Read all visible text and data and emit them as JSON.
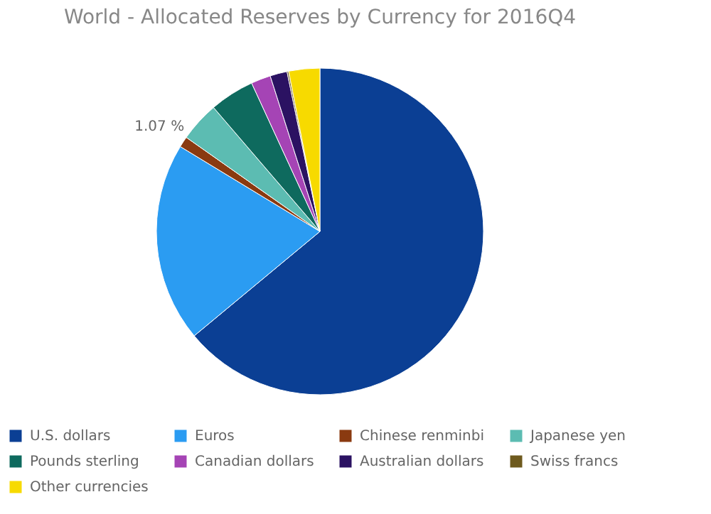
{
  "chart_data": {
    "type": "pie",
    "title": "World - Allocated Reserves by Currency for 2016Q4",
    "categories": [
      "U.S. dollars",
      "Euros",
      "Chinese renminbi",
      "Japanese yen",
      "Pounds sterling",
      "Canadian dollars",
      "Australian dollars",
      "Swiss francs",
      "Other currencies"
    ],
    "values": [
      63.96,
      19.74,
      1.07,
      3.95,
      4.42,
      1.94,
      1.69,
      0.16,
      3.07
    ],
    "colors": [
      "#0b3f94",
      "#2b9cf2",
      "#8a3a10",
      "#5cbcb2",
      "#0e6a5e",
      "#a544b5",
      "#2b1262",
      "#6e5a1e",
      "#f7da00"
    ],
    "value_labels": [
      null,
      null,
      "1.07 %",
      null,
      null,
      null,
      null,
      null,
      null
    ],
    "legend": "bottom"
  }
}
